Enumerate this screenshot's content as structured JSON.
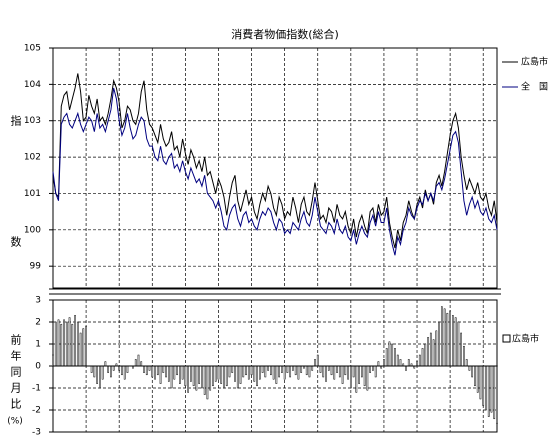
{
  "chart_data": [
    {
      "type": "line",
      "title": "消費者物価指数(総合)",
      "y_label": "指数",
      "ylim": [
        98.4,
        105
      ],
      "yticks": [
        99,
        100,
        101,
        102,
        103,
        104,
        105
      ],
      "grid": true,
      "legend": "right",
      "series": [
        {
          "name": "広島市",
          "color": "#000000",
          "values": [
            101.5,
            101.0,
            100.9,
            103.4,
            103.7,
            103.8,
            103.3,
            103.6,
            103.9,
            104.3,
            103.8,
            103.0,
            103.1,
            103.7,
            103.4,
            103.2,
            103.6,
            103.0,
            103.1,
            102.9,
            103.2,
            103.6,
            104.1,
            103.9,
            103.5,
            102.8,
            103.0,
            103.4,
            103.3,
            103.0,
            102.9,
            103.2,
            103.8,
            104.1,
            103.3,
            102.9,
            102.8,
            102.6,
            102.4,
            102.9,
            102.5,
            102.3,
            102.4,
            102.7,
            102.2,
            102.3,
            102.0,
            102.5,
            102.1,
            101.8,
            102.2,
            102.0,
            101.7,
            101.9,
            101.6,
            102.0,
            101.5,
            101.6,
            101.3,
            101.0,
            101.4,
            101.2,
            100.9,
            100.4,
            100.9,
            101.3,
            101.5,
            100.8,
            100.5,
            100.8,
            101.1,
            100.7,
            100.9,
            100.5,
            100.3,
            100.7,
            101.0,
            100.8,
            101.2,
            101.0,
            100.6,
            100.4,
            100.9,
            100.7,
            100.3,
            100.5,
            100.4,
            100.9,
            100.6,
            100.2,
            100.7,
            100.9,
            100.5,
            100.4,
            100.8,
            101.3,
            100.8,
            100.3,
            100.4,
            100.2,
            100.6,
            100.5,
            100.2,
            100.7,
            100.4,
            100.3,
            100.5,
            100.1,
            99.9,
            100.3,
            99.8,
            100.2,
            100.4,
            100.1,
            99.9,
            100.5,
            100.6,
            100.2,
            100.7,
            100.4,
            100.5,
            100.9,
            100.2,
            99.8,
            99.5,
            100.0,
            99.7,
            100.2,
            100.4,
            100.8,
            100.5,
            100.3,
            100.7,
            100.9,
            100.6,
            101.1,
            100.8,
            101.0,
            100.7,
            101.3,
            101.5,
            101.2,
            101.6,
            102.1,
            102.6,
            103.0,
            103.2,
            102.8,
            102.0,
            101.5,
            101.1,
            101.4,
            101.2,
            101.0,
            101.3,
            100.9,
            100.8,
            101.0,
            100.6,
            100.4,
            100.8,
            100.2
          ]
        },
        {
          "name": "全　国",
          "color": "#000080",
          "values": [
            101.6,
            101.0,
            100.8,
            102.9,
            103.1,
            103.2,
            102.9,
            102.8,
            103.0,
            103.2,
            102.9,
            102.7,
            102.9,
            103.1,
            103.0,
            102.7,
            103.2,
            102.8,
            102.9,
            102.7,
            103.0,
            103.3,
            103.9,
            103.6,
            103.0,
            102.6,
            102.8,
            103.2,
            102.8,
            102.5,
            102.6,
            102.9,
            103.1,
            103.0,
            102.5,
            102.3,
            102.3,
            102.0,
            101.9,
            102.3,
            101.9,
            101.8,
            102.0,
            102.1,
            101.7,
            101.8,
            101.6,
            101.9,
            101.6,
            101.4,
            101.7,
            101.5,
            101.3,
            101.4,
            101.2,
            101.5,
            101.0,
            100.9,
            100.8,
            100.6,
            100.8,
            100.5,
            100.1,
            100.0,
            100.4,
            100.6,
            100.7,
            100.3,
            100.1,
            100.4,
            100.5,
            100.2,
            100.3,
            100.1,
            100.0,
            100.3,
            100.5,
            100.4,
            100.6,
            100.5,
            100.2,
            100.0,
            100.3,
            100.2,
            99.9,
            100.0,
            99.9,
            100.2,
            100.1,
            100.0,
            100.3,
            100.5,
            100.2,
            100.1,
            100.4,
            100.9,
            100.5,
            100.1,
            100.0,
            99.9,
            100.2,
            100.1,
            99.9,
            100.3,
            100.0,
            99.9,
            100.1,
            99.8,
            99.7,
            100.0,
            99.6,
            99.9,
            100.1,
            99.9,
            99.8,
            100.2,
            100.4,
            100.1,
            100.5,
            100.2,
            100.2,
            100.6,
            100.0,
            99.6,
            99.3,
            99.8,
            99.6,
            100.0,
            100.2,
            100.6,
            100.4,
            100.3,
            100.6,
            100.8,
            100.7,
            101.0,
            100.8,
            101.0,
            100.8,
            101.2,
            101.3,
            101.1,
            101.4,
            101.8,
            102.2,
            102.6,
            102.7,
            102.4,
            101.6,
            100.8,
            100.4,
            100.7,
            100.9,
            100.6,
            100.8,
            100.5,
            100.4,
            100.6,
            100.3,
            100.2,
            100.4,
            100.0
          ]
        }
      ]
    },
    {
      "type": "bar",
      "y_label": "前年同月比",
      "y_unit": "(%)",
      "ylim": [
        -3,
        3
      ],
      "yticks": [
        -3,
        -2,
        -1,
        0,
        1,
        2,
        3
      ],
      "grid": true,
      "legend": "right",
      "series": [
        {
          "name": "広島市",
          "color": "#ffffff",
          "values": [
            0.5,
            2.0,
            2.1,
            1.9,
            2.1,
            2.0,
            2.2,
            1.9,
            2.3,
            2.0,
            1.5,
            1.7,
            1.8,
            0.0,
            -0.3,
            -0.5,
            -0.8,
            -1.0,
            -0.6,
            0.2,
            -0.3,
            -0.5,
            -0.2,
            0.1,
            -0.2,
            -0.4,
            -0.6,
            -0.3,
            0.0,
            -0.1,
            0.3,
            0.5,
            0.2,
            -0.3,
            -0.4,
            -0.2,
            -0.5,
            -0.6,
            -0.4,
            -0.8,
            -0.3,
            -0.5,
            -0.7,
            -1.0,
            -0.6,
            -0.4,
            -0.8,
            -0.6,
            -0.9,
            -1.2,
            -0.7,
            -0.9,
            -1.1,
            -0.8,
            -1.0,
            -1.3,
            -1.5,
            -1.1,
            -0.9,
            -0.7,
            -0.6,
            -0.8,
            -1.0,
            -0.9,
            -0.5,
            -0.3,
            -0.7,
            -1.0,
            -0.8,
            -0.5,
            -0.4,
            -0.6,
            -0.4,
            -0.7,
            -0.9,
            -0.6,
            -0.3,
            -0.5,
            -0.2,
            -0.4,
            -0.6,
            -0.8,
            -0.5,
            -0.3,
            -0.6,
            -0.3,
            -0.5,
            -0.2,
            -0.4,
            -0.6,
            -0.3,
            -0.1,
            -0.4,
            -0.5,
            -0.2,
            0.3,
            0.5,
            -0.3,
            -0.5,
            -0.7,
            -0.2,
            -0.4,
            -0.6,
            -0.3,
            -0.5,
            -0.8,
            -0.4,
            -0.6,
            -1.0,
            -0.5,
            -1.2,
            -0.8,
            -0.5,
            -0.9,
            -1.1,
            -0.3,
            -0.2,
            -0.5,
            0.2,
            -0.1,
            0.3,
            0.8,
            1.1,
            1.0,
            0.8,
            0.5,
            0.3,
            0.1,
            -0.2,
            0.3,
            0.1,
            -0.1,
            0.2,
            0.5,
            0.8,
            1.0,
            1.3,
            1.5,
            1.2,
            1.6,
            2.0,
            2.7,
            2.6,
            2.4,
            2.5,
            2.3,
            2.2,
            2.0,
            1.5,
            0.9,
            0.3,
            -0.2,
            -0.5,
            -0.9,
            -1.2,
            -1.5,
            -1.8,
            -2.0,
            -2.3,
            -2.1,
            -2.4,
            -2.6
          ]
        }
      ]
    }
  ]
}
